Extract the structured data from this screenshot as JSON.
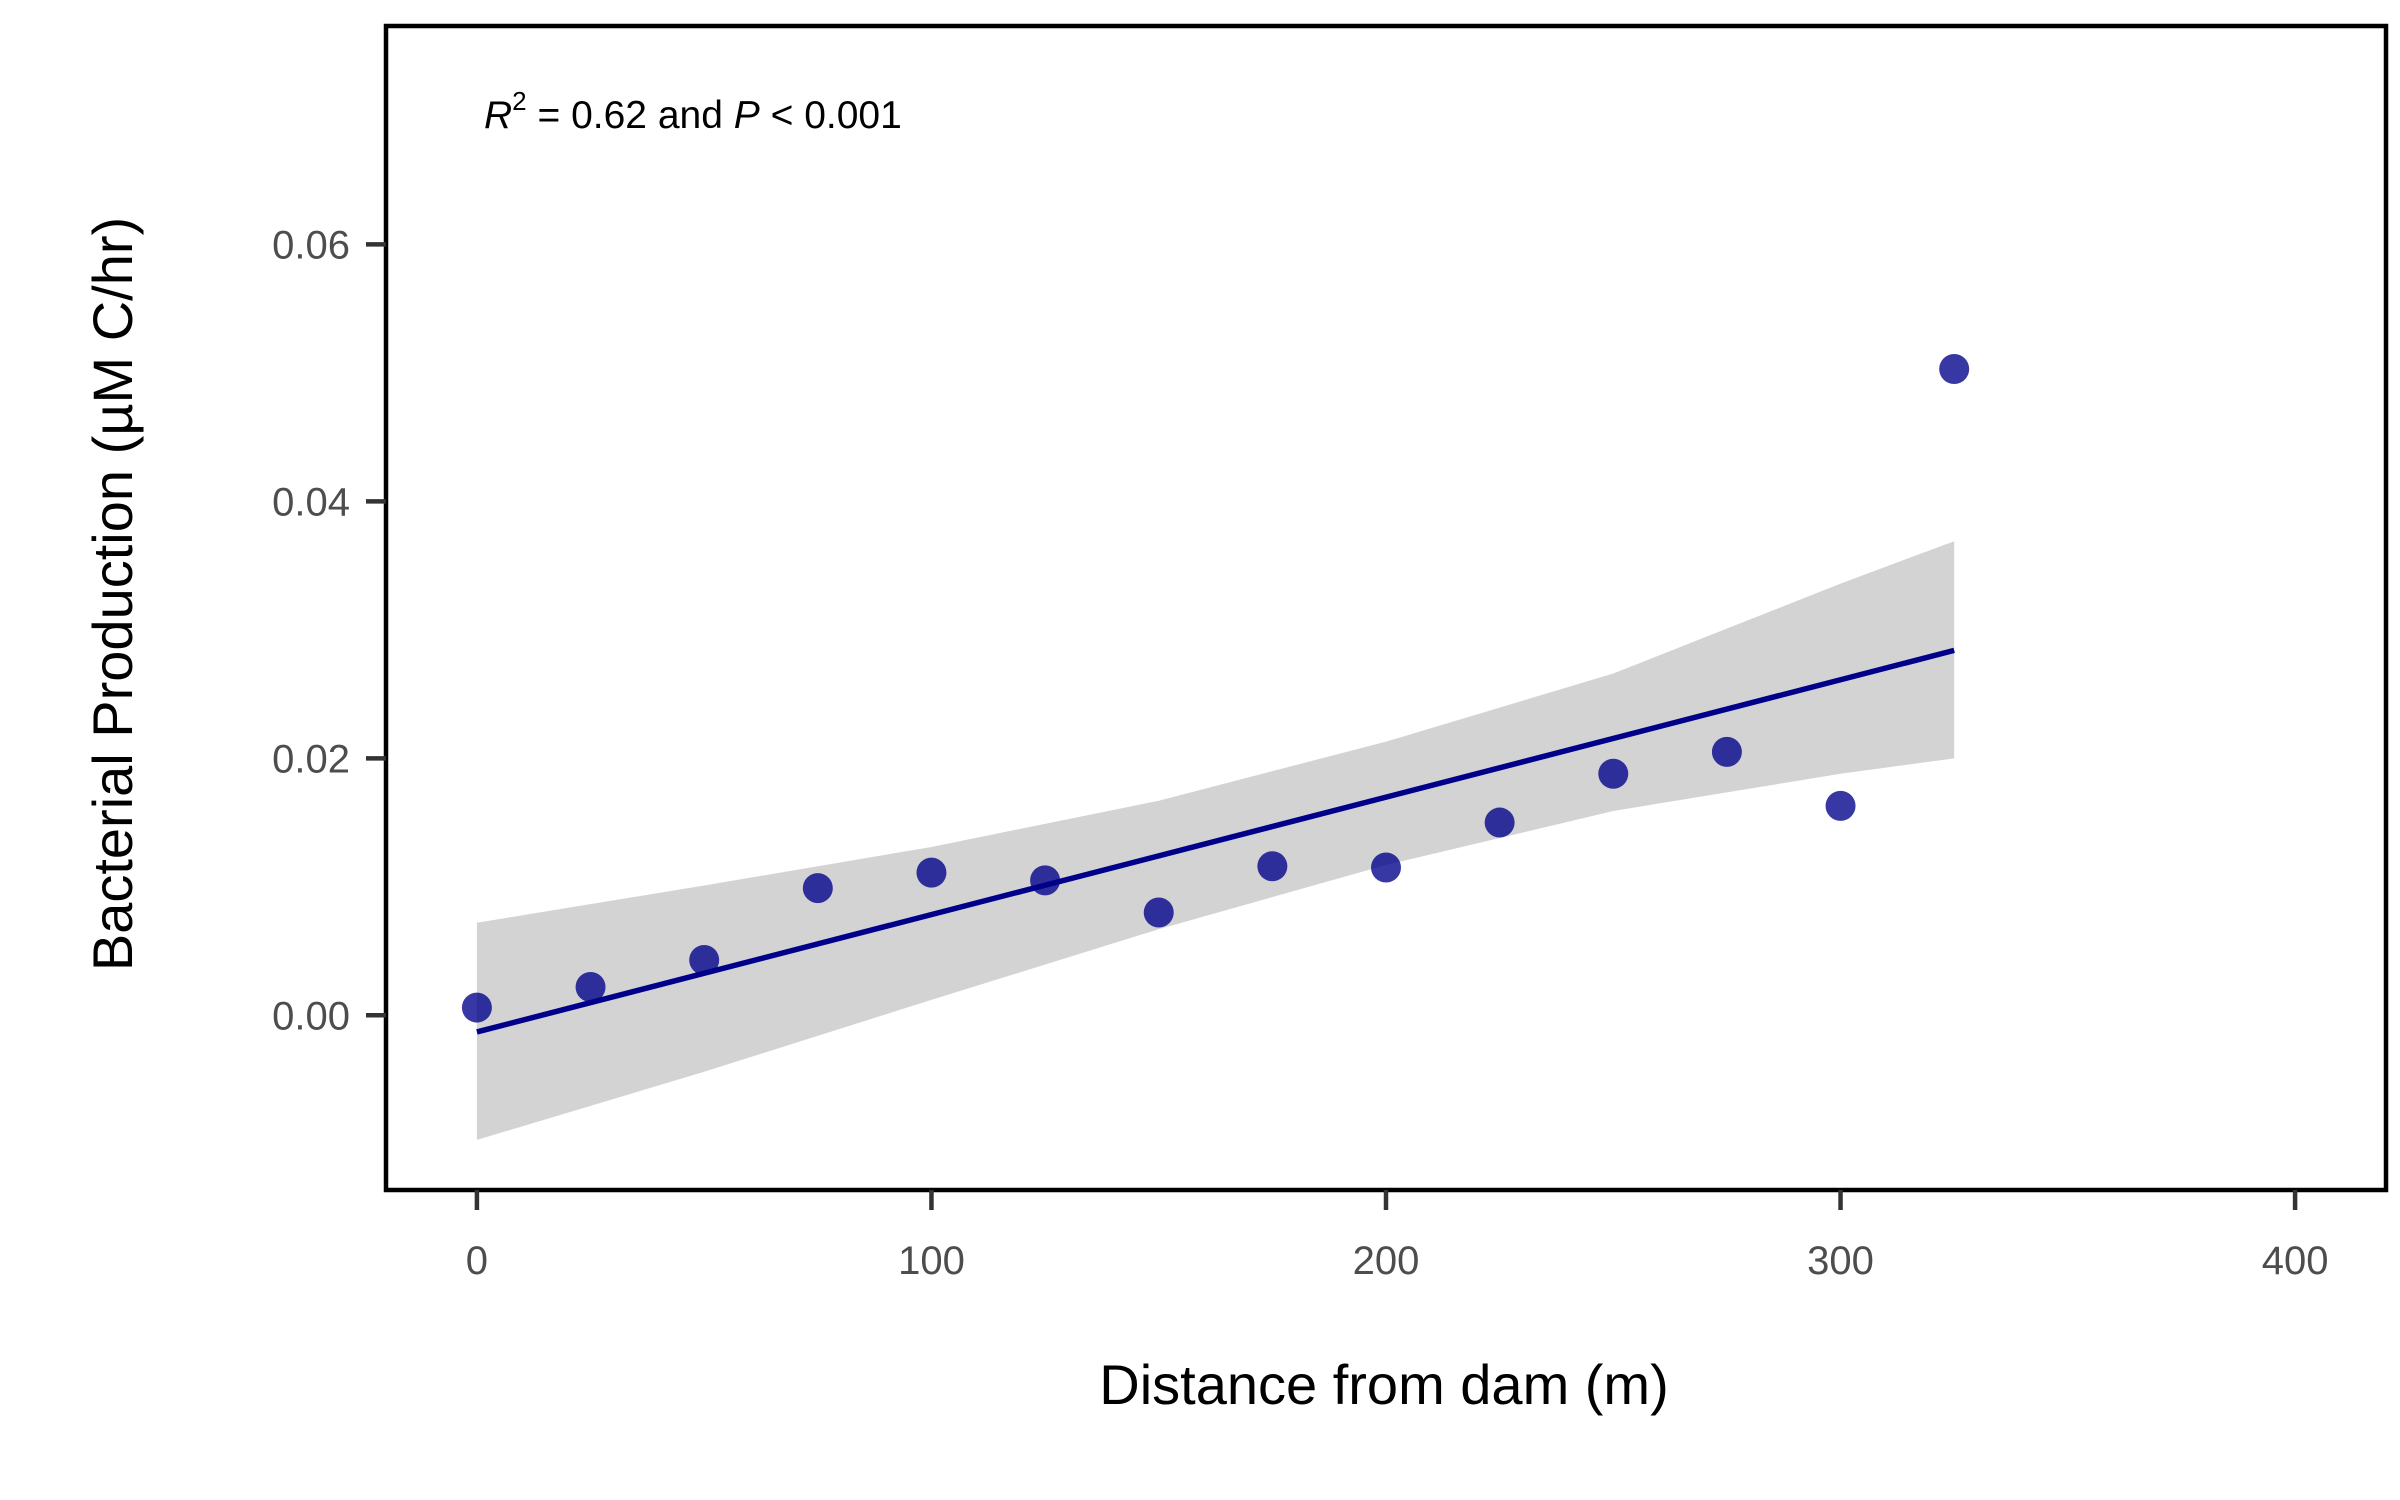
{
  "chart_data": {
    "type": "scatter",
    "title": "",
    "xlabel": "Distance from dam (m)",
    "ylabel": "Bacterial Production (µM C/hr)",
    "xlim": [
      -20,
      420
    ],
    "ylim": [
      -0.0136,
      0.077
    ],
    "x_ticks": [
      0,
      100,
      200,
      300,
      400
    ],
    "x_tick_labels": [
      "0",
      "100",
      "200",
      "300",
      "400"
    ],
    "y_ticks": [
      0,
      0.02,
      0.04,
      0.06
    ],
    "y_tick_labels": [
      "0.00",
      "0.02",
      "0.04",
      "0.06"
    ],
    "grid": false,
    "legend": "none",
    "annotation": {
      "r_symbol": "R",
      "r_exponent": "2",
      "r_value_text": " = 0.62 and ",
      "p_symbol": "P",
      "p_value_text": " < 0.001"
    },
    "points": [
      {
        "x": 0,
        "y": 0.0006
      },
      {
        "x": 25,
        "y": 0.0022
      },
      {
        "x": 50,
        "y": 0.0043
      },
      {
        "x": 75,
        "y": 0.0099
      },
      {
        "x": 100,
        "y": 0.0111
      },
      {
        "x": 125,
        "y": 0.0105
      },
      {
        "x": 150,
        "y": 0.008
      },
      {
        "x": 175,
        "y": 0.0116
      },
      {
        "x": 200,
        "y": 0.0115
      },
      {
        "x": 225,
        "y": 0.015
      },
      {
        "x": 250,
        "y": 0.0188
      },
      {
        "x": 275,
        "y": 0.0205
      },
      {
        "x": 300,
        "y": 0.0163
      },
      {
        "x": 325,
        "y": 0.0503
      }
    ],
    "fit_line": {
      "x": [
        0,
        325
      ],
      "y": [
        -0.0013,
        0.0284
      ]
    },
    "confidence_band": {
      "x": [
        0,
        50,
        100,
        150,
        200,
        250,
        300,
        325
      ],
      "lower": [
        -0.0097,
        -0.0044,
        0.0012,
        0.0067,
        0.0117,
        0.0159,
        0.0188,
        0.02
      ],
      "upper": [
        0.0072,
        0.0101,
        0.0131,
        0.0167,
        0.0213,
        0.0266,
        0.0336,
        0.0369
      ]
    },
    "colors": {
      "point": "#00008B",
      "fit_line": "#00008B",
      "band": "#d3d3d3",
      "frame": "#000000",
      "tick_label": "#4d4d4d"
    }
  }
}
